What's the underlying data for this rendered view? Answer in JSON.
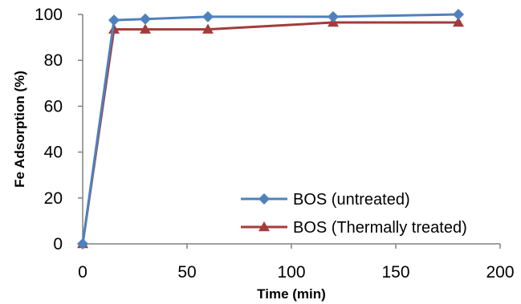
{
  "chart_data": {
    "type": "line",
    "xlabel": "Time (min)",
    "ylabel": "Fe Adsorption (%)",
    "xlim": [
      0,
      200
    ],
    "ylim": [
      0,
      100
    ],
    "x_ticks": [
      0,
      50,
      100,
      150,
      200
    ],
    "y_ticks": [
      0,
      20,
      40,
      60,
      80,
      100
    ],
    "grid": false,
    "legend_position": "bottom-right",
    "series": [
      {
        "name": "BOS (untreated)",
        "color": "#4F81BD",
        "marker": "diamond",
        "x": [
          0,
          15,
          30,
          60,
          120,
          180
        ],
        "y": [
          0,
          97.5,
          98,
          99,
          99,
          100
        ]
      },
      {
        "name": "BOS (Thermally treated)",
        "color": "#A33B3B",
        "marker": "triangle",
        "x": [
          0,
          15,
          30,
          60,
          120,
          180
        ],
        "y": [
          0,
          93.5,
          93.5,
          93.5,
          96.5,
          96.5
        ]
      }
    ]
  }
}
